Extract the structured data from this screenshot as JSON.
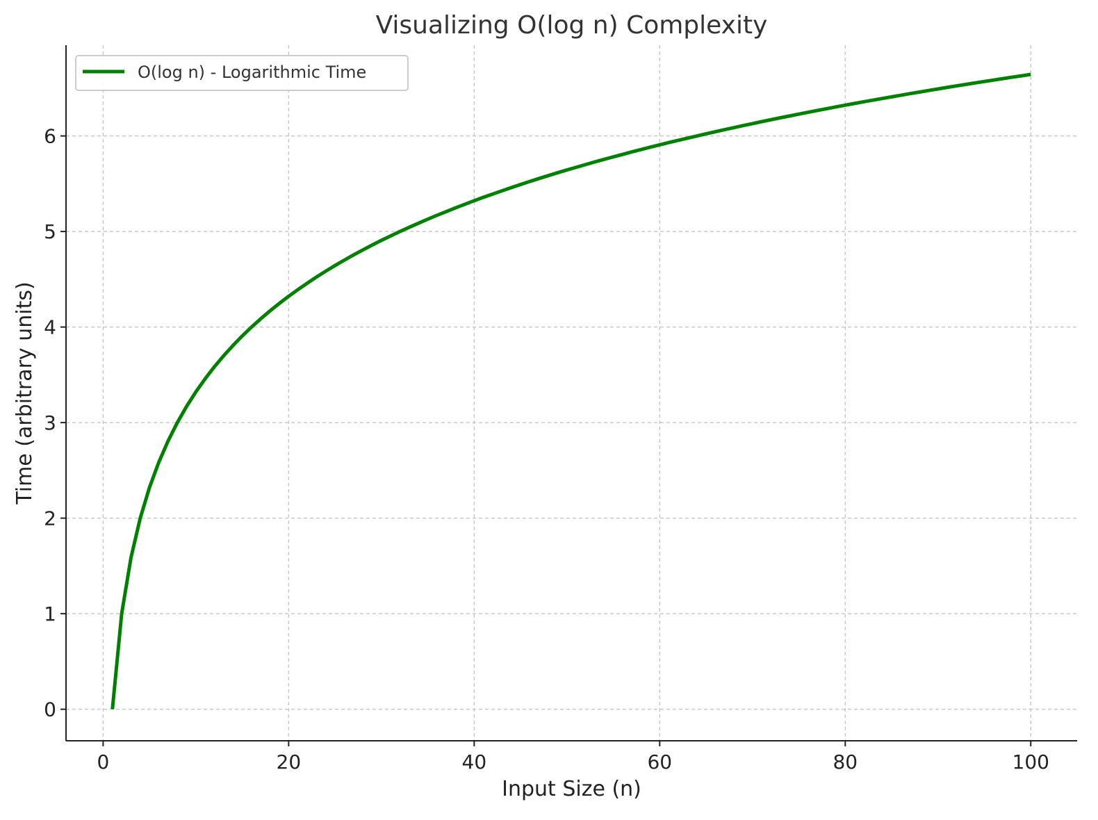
{
  "chart_data": {
    "type": "line",
    "title": "Visualizing O(log n) Complexity",
    "xlabel": "Input Size (n)",
    "ylabel": "Time (arbitrary units)",
    "xlim": [
      -4,
      105
    ],
    "ylim": [
      -0.33,
      6.95
    ],
    "xticks": [
      0,
      20,
      40,
      60,
      80,
      100
    ],
    "yticks": [
      0,
      1,
      2,
      3,
      4,
      5,
      6
    ],
    "grid": true,
    "legend_position": "top-left",
    "series": [
      {
        "name": "O(log n) - Logarithmic Time",
        "color": "#008000",
        "x": [
          1,
          2,
          3,
          4,
          5,
          6,
          7,
          8,
          9,
          10,
          11,
          12,
          13,
          14,
          15,
          16,
          17,
          18,
          19,
          20,
          21,
          22,
          23,
          24,
          25,
          26,
          27,
          28,
          29,
          30,
          31,
          32,
          33,
          34,
          35,
          36,
          37,
          38,
          39,
          40,
          41,
          42,
          43,
          44,
          45,
          46,
          47,
          48,
          49,
          50,
          51,
          52,
          53,
          54,
          55,
          56,
          57,
          58,
          59,
          60,
          61,
          62,
          63,
          64,
          65,
          66,
          67,
          68,
          69,
          70,
          71,
          72,
          73,
          74,
          75,
          76,
          77,
          78,
          79,
          80,
          81,
          82,
          83,
          84,
          85,
          86,
          87,
          88,
          89,
          90,
          91,
          92,
          93,
          94,
          95,
          96,
          97,
          98,
          99,
          100
        ],
        "y": [
          0,
          1,
          1.585,
          2,
          2.322,
          2.585,
          2.807,
          3,
          3.17,
          3.322,
          3.459,
          3.585,
          3.7,
          3.807,
          3.907,
          4,
          4.087,
          4.17,
          4.248,
          4.322,
          4.392,
          4.459,
          4.524,
          4.585,
          4.644,
          4.7,
          4.755,
          4.807,
          4.858,
          4.907,
          4.954,
          5,
          5.044,
          5.087,
          5.129,
          5.17,
          5.209,
          5.248,
          5.285,
          5.322,
          5.358,
          5.392,
          5.426,
          5.459,
          5.492,
          5.524,
          5.555,
          5.585,
          5.615,
          5.644,
          5.672,
          5.7,
          5.728,
          5.755,
          5.781,
          5.807,
          5.833,
          5.858,
          5.883,
          5.907,
          5.931,
          5.954,
          5.977,
          6,
          6.022,
          6.044,
          6.066,
          6.087,
          6.109,
          6.129,
          6.15,
          6.17,
          6.19,
          6.209,
          6.229,
          6.248,
          6.267,
          6.285,
          6.304,
          6.322,
          6.34,
          6.358,
          6.375,
          6.392,
          6.409,
          6.426,
          6.443,
          6.459,
          6.476,
          6.492,
          6.508,
          6.524,
          6.539,
          6.555,
          6.57,
          6.585,
          6.6,
          6.615,
          6.629,
          6.644
        ]
      }
    ]
  }
}
